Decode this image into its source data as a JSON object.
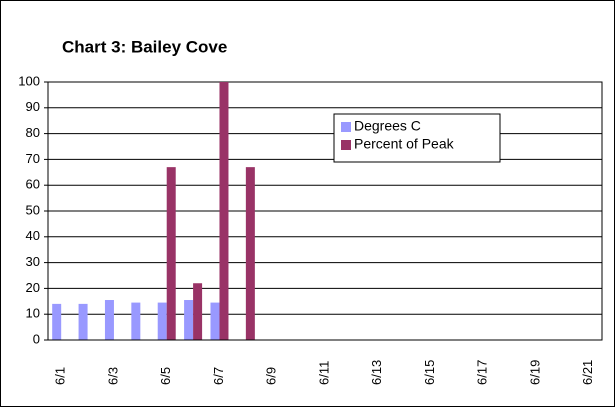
{
  "chart_data": {
    "type": "bar",
    "title": "Chart 3:  Bailey Cove",
    "categories": [
      "6/1",
      null,
      "6/3",
      null,
      "6/5",
      null,
      "6/7",
      null,
      "6/9",
      null,
      "6/11",
      null,
      "6/13",
      null,
      "6/15",
      null,
      "6/17",
      null,
      "6/19",
      null,
      "6/21"
    ],
    "series": [
      {
        "name": "Degrees C",
        "color": "#9999ff",
        "values": [
          14,
          14,
          15.5,
          14.5,
          14.5,
          15.5,
          14.5,
          null,
          null,
          null,
          null,
          null,
          null,
          null,
          null,
          null,
          null,
          null,
          null,
          null,
          null
        ]
      },
      {
        "name": "Percent of Peak",
        "color": "#993366",
        "values": [
          null,
          null,
          null,
          null,
          67,
          22,
          100,
          67,
          null,
          null,
          null,
          null,
          null,
          null,
          null,
          null,
          null,
          null,
          null,
          null,
          null
        ]
      }
    ],
    "ylim": [
      0,
      100
    ],
    "yticks": [
      0,
      10,
      20,
      30,
      40,
      50,
      60,
      70,
      80,
      90,
      100
    ],
    "grid": true
  }
}
